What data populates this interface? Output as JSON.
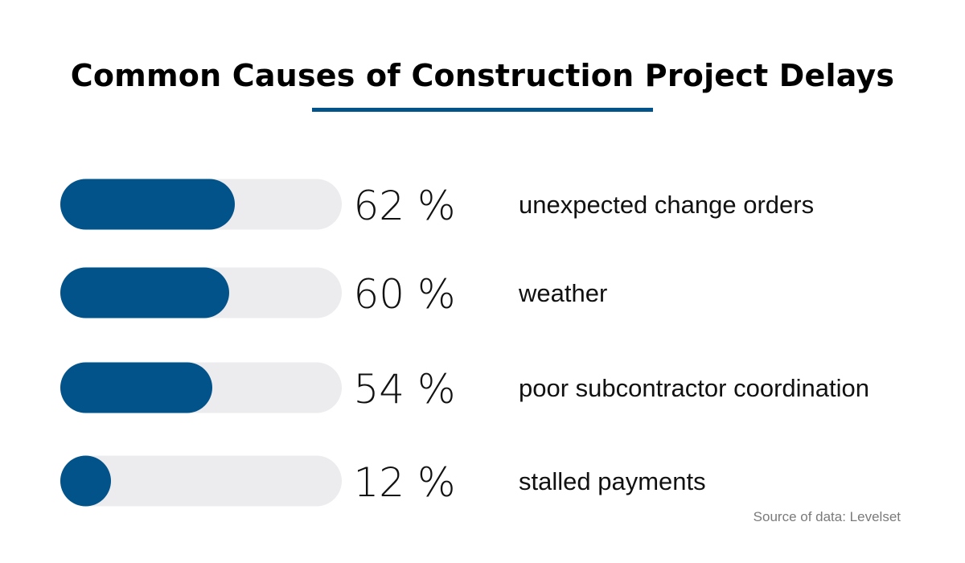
{
  "title": "Common Causes of Construction Project Delays",
  "source": "Source of data: Levelset",
  "colors": {
    "bar_fill": "#02538a",
    "bar_track": "#ececee",
    "title_underline": "#02538a",
    "value_text": "#111111",
    "label_text": "#111111",
    "source_text": "#7a7a7a"
  },
  "chart_data": {
    "type": "bar",
    "orientation": "horizontal",
    "categories": [
      "unexpected change orders",
      "weather",
      "poor subcontractor coordination",
      "stalled payments"
    ],
    "values": [
      62,
      60,
      54,
      12
    ],
    "value_labels": [
      "62 %",
      "60 %",
      "54 %",
      "12 %"
    ],
    "unit": "%",
    "xlim": [
      0,
      100
    ],
    "grid": false,
    "legend": "none"
  }
}
